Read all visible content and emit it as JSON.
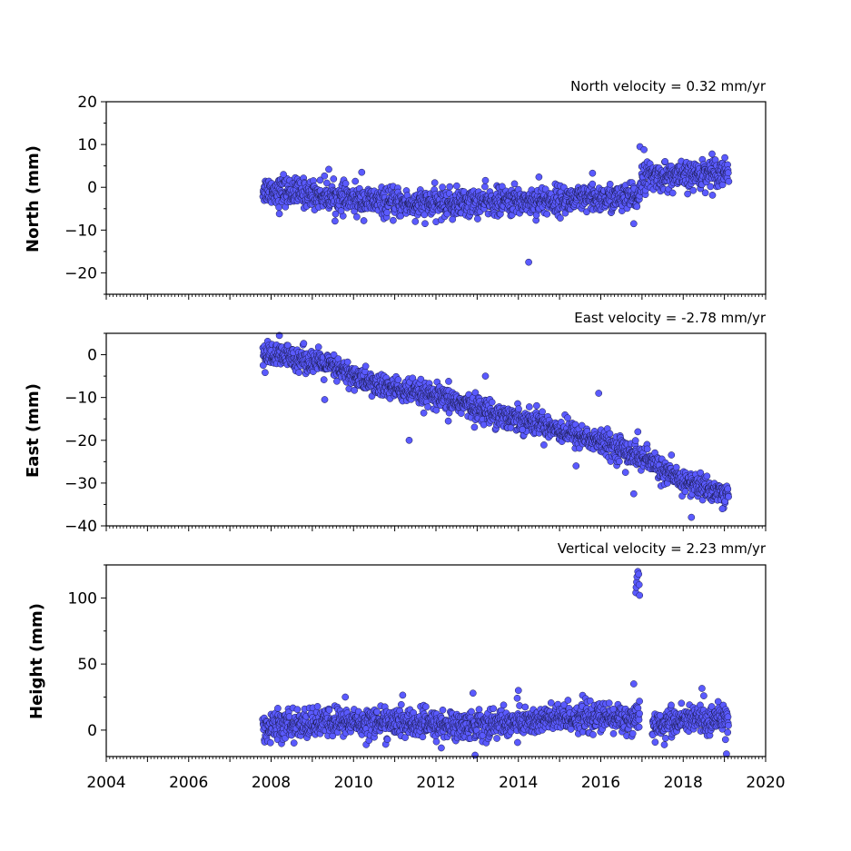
{
  "colors": {
    "marker_fill": "#5a5aff",
    "marker_edge": "#1a1a4a",
    "axis": "#000000"
  },
  "chart_data": [
    {
      "type": "scatter",
      "title": "North velocity = 0.32 mm/yr",
      "ylabel": "North (mm)",
      "xlim": [
        2004,
        2020
      ],
      "ylim": [
        -25,
        20
      ],
      "yticks": [
        20,
        10,
        0,
        -10,
        -20
      ],
      "ytick_labels": [
        "20",
        "10",
        "0",
        "−10",
        "−20"
      ],
      "grid": false,
      "trend": [
        {
          "x": 2007.8,
          "y": -0.5
        },
        {
          "x": 2009.0,
          "y": -1.5
        },
        {
          "x": 2010.0,
          "y": -3.0
        },
        {
          "x": 2011.5,
          "y": -4.0
        },
        {
          "x": 2013.0,
          "y": -3.5
        },
        {
          "x": 2015.0,
          "y": -3.0
        },
        {
          "x": 2016.9,
          "y": -2.5
        },
        {
          "x": 2017.0,
          "y": 2.5
        },
        {
          "x": 2018.0,
          "y": 2.5
        },
        {
          "x": 2019.1,
          "y": 4.0
        }
      ],
      "scatter_sd": 1.6,
      "outliers": [
        {
          "x": 2014.25,
          "y": -17.5
        },
        {
          "x": 2016.95,
          "y": 9.5
        },
        {
          "x": 2017.05,
          "y": 8.8
        },
        {
          "x": 2016.8,
          "y": -8.5
        },
        {
          "x": 2008.3,
          "y": 3.0
        },
        {
          "x": 2009.4,
          "y": 4.2
        },
        {
          "x": 2010.2,
          "y": 3.5
        },
        {
          "x": 2011.5,
          "y": -8.0
        },
        {
          "x": 2014.5,
          "y": 2.4
        },
        {
          "x": 2015.8,
          "y": 3.3
        },
        {
          "x": 2018.7,
          "y": 7.8
        },
        {
          "x": 2008.2,
          "y": -6.2
        },
        {
          "x": 2009.7,
          "y": -5.5
        },
        {
          "x": 2012.4,
          "y": -7.5
        }
      ]
    },
    {
      "type": "scatter",
      "title": "East velocity = -2.78 mm/yr",
      "ylabel": "East (mm)",
      "xlim": [
        2004,
        2020
      ],
      "ylim": [
        -40,
        5
      ],
      "yticks": [
        0,
        -10,
        -20,
        -30,
        -40
      ],
      "ytick_labels": [
        "0",
        "−10",
        "−20",
        "−30",
        "−40"
      ],
      "grid": false,
      "trend": [
        {
          "x": 2007.8,
          "y": 0.0
        },
        {
          "x": 2008.8,
          "y": -1.0
        },
        {
          "x": 2009.5,
          "y": -3.0
        },
        {
          "x": 2010.5,
          "y": -7.0
        },
        {
          "x": 2011.5,
          "y": -9.0
        },
        {
          "x": 2012.5,
          "y": -11.0
        },
        {
          "x": 2013.5,
          "y": -14.0
        },
        {
          "x": 2014.5,
          "y": -16.0
        },
        {
          "x": 2015.5,
          "y": -19.0
        },
        {
          "x": 2016.5,
          "y": -22.0
        },
        {
          "x": 2017.2,
          "y": -25.0
        },
        {
          "x": 2017.8,
          "y": -29.0
        },
        {
          "x": 2018.5,
          "y": -31.0
        },
        {
          "x": 2019.1,
          "y": -33.0
        }
      ],
      "scatter_sd": 1.4,
      "outliers": [
        {
          "x": 2008.2,
          "y": 4.5
        },
        {
          "x": 2011.35,
          "y": -20.0
        },
        {
          "x": 2013.2,
          "y": -5.0
        },
        {
          "x": 2015.95,
          "y": -9.0
        },
        {
          "x": 2009.3,
          "y": -10.5
        },
        {
          "x": 2014.1,
          "y": -17.5
        },
        {
          "x": 2016.6,
          "y": -27.5
        },
        {
          "x": 2016.8,
          "y": -32.5
        },
        {
          "x": 2016.9,
          "y": -18.0
        },
        {
          "x": 2018.2,
          "y": -38.0
        },
        {
          "x": 2018.95,
          "y": -36.0
        },
        {
          "x": 2012.3,
          "y": -15.5
        },
        {
          "x": 2015.4,
          "y": -26.0
        }
      ]
    },
    {
      "type": "scatter",
      "title": "Vertical velocity = 2.23 mm/yr",
      "ylabel": "Height (mm)",
      "xlim": [
        2004,
        2020
      ],
      "ylim": [
        -20,
        125
      ],
      "yticks": [
        100,
        50,
        0
      ],
      "ytick_labels": [
        "100",
        "50",
        "0"
      ],
      "xticks": [
        2004,
        2006,
        2008,
        2010,
        2012,
        2014,
        2016,
        2018,
        2020
      ],
      "xtick_labels": [
        "2004",
        "2006",
        "2008",
        "2010",
        "2012",
        "2014",
        "2016",
        "2018",
        "2020"
      ],
      "grid": false,
      "trend": [
        {
          "x": 2007.8,
          "y": 2.0
        },
        {
          "x": 2009.5,
          "y": 6.0
        },
        {
          "x": 2011.0,
          "y": 6.0
        },
        {
          "x": 2012.5,
          "y": 3.0
        },
        {
          "x": 2014.0,
          "y": 6.0
        },
        {
          "x": 2015.5,
          "y": 10.0
        },
        {
          "x": 2016.9,
          "y": 8.0
        },
        {
          "x": 2017.3,
          "y": 4.0
        },
        {
          "x": 2018.3,
          "y": 8.0
        },
        {
          "x": 2019.1,
          "y": 8.0
        }
      ],
      "scatter_sd": 5.5,
      "gaps": [
        [
          2016.95,
          2017.25
        ]
      ],
      "outliers": [
        {
          "x": 2016.85,
          "y": 104.0
        },
        {
          "x": 2016.86,
          "y": 108.0
        },
        {
          "x": 2016.87,
          "y": 112.0
        },
        {
          "x": 2016.88,
          "y": 116.0
        },
        {
          "x": 2016.9,
          "y": 120.0
        },
        {
          "x": 2016.92,
          "y": 118.0
        },
        {
          "x": 2016.93,
          "y": 110.0
        },
        {
          "x": 2016.94,
          "y": 102.0
        },
        {
          "x": 2016.8,
          "y": 35.0
        },
        {
          "x": 2014.0,
          "y": 30.0
        },
        {
          "x": 2012.9,
          "y": 28.0
        },
        {
          "x": 2012.95,
          "y": -19.0
        },
        {
          "x": 2019.05,
          "y": -18.0
        },
        {
          "x": 2009.8,
          "y": 25.0
        },
        {
          "x": 2018.5,
          "y": 26.0
        }
      ]
    }
  ]
}
